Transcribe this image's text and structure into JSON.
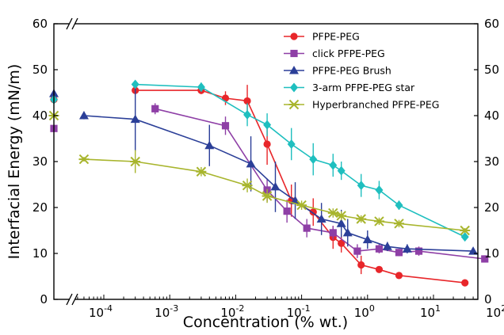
{
  "chart_data": {
    "type": "line",
    "xlabel": "Concentration (% wt.)",
    "ylabel": "Interfacial Energy (mN/m)",
    "xscale": "log",
    "x_tick_labels": [
      "10",
      "10",
      "10",
      "10",
      "10",
      "10",
      "10"
    ],
    "x_tick_exponents": [
      "-4",
      "-3",
      "-2",
      "-1",
      "0",
      "1",
      "2"
    ],
    "y_tick_labels": [
      "0",
      "10",
      "20",
      "30",
      "40",
      "50",
      "60"
    ],
    "y_tick_labels_right": [
      "0",
      "10",
      "20",
      "30",
      "40",
      "50",
      "60"
    ],
    "ylim": [
      0,
      60
    ],
    "axis_break": "left",
    "legend_position": "top-right",
    "series": [
      {
        "name": "PFPE-PEG",
        "color": "#e8262a",
        "marker": "circle",
        "axis_start_y": 43.5,
        "points": [
          {
            "x": 0.0003,
            "y": 45.5,
            "err": 0.8
          },
          {
            "x": 0.003,
            "y": 45.5,
            "err": 0.8
          },
          {
            "x": 0.007,
            "y": 43.8,
            "err": 1.5
          },
          {
            "x": 0.015,
            "y": 43.2,
            "err": 3.5
          },
          {
            "x": 0.03,
            "y": 33.8,
            "err": 4.5
          },
          {
            "x": 0.07,
            "y": 21.5,
            "err": 3.5
          },
          {
            "x": 0.15,
            "y": 19.0,
            "err": 3.0
          },
          {
            "x": 0.3,
            "y": 13.5,
            "err": 2.5
          },
          {
            "x": 0.4,
            "y": 12.2,
            "err": 2.0
          },
          {
            "x": 0.8,
            "y": 7.5,
            "err": 2.0
          },
          {
            "x": 1.5,
            "y": 6.5,
            "err": 0.5
          },
          {
            "x": 3,
            "y": 5.2,
            "err": 0.5
          },
          {
            "x": 30,
            "y": 3.6,
            "err": 0.3
          }
        ]
      },
      {
        "name": "click PFPE-PEG",
        "color": "#8e3fa6",
        "marker": "square",
        "axis_start_y": 37.2,
        "points": [
          {
            "x": 0.0006,
            "y": 41.5,
            "err": 1.2
          },
          {
            "x": 0.007,
            "y": 37.8,
            "err": 2.0
          },
          {
            "x": 0.03,
            "y": 23.8,
            "err": 2.5
          },
          {
            "x": 0.06,
            "y": 19.2,
            "err": 2.5
          },
          {
            "x": 0.12,
            "y": 15.5,
            "err": 2.0
          },
          {
            "x": 0.3,
            "y": 14.5,
            "err": 1.5
          },
          {
            "x": 0.7,
            "y": 10.5,
            "err": 1.5
          },
          {
            "x": 1.5,
            "y": 11.0,
            "err": 1.0
          },
          {
            "x": 3,
            "y": 10.2,
            "err": 0.8
          },
          {
            "x": 6,
            "y": 10.5,
            "err": 1.0
          },
          {
            "x": 60,
            "y": 8.8,
            "err": 0.3
          }
        ]
      },
      {
        "name": "PFPE-PEG Brush",
        "color": "#2b3f98",
        "marker": "triangle",
        "axis_start_y": 44.8,
        "points": [
          {
            "x": 5e-05,
            "y": 40.0,
            "err": 0.8
          },
          {
            "x": 0.0003,
            "y": 39.2,
            "err": 7.0
          },
          {
            "x": 0.004,
            "y": 33.5,
            "err": 4.5
          },
          {
            "x": 0.017,
            "y": 29.5,
            "err": 6.0
          },
          {
            "x": 0.04,
            "y": 24.5,
            "err": 5.5
          },
          {
            "x": 0.08,
            "y": 21.5,
            "err": 4.0
          },
          {
            "x": 0.2,
            "y": 17.5,
            "err": 3.5
          },
          {
            "x": 0.4,
            "y": 16.5,
            "err": 3.0
          },
          {
            "x": 0.5,
            "y": 14.5,
            "err": 3.0
          },
          {
            "x": 1,
            "y": 13.0,
            "err": 2.0
          },
          {
            "x": 2,
            "y": 11.5,
            "err": 1.0
          },
          {
            "x": 4,
            "y": 11.0,
            "err": 1.0
          },
          {
            "x": 40,
            "y": 10.5,
            "err": 0.3
          }
        ]
      },
      {
        "name": "3-arm PFPE-PEG star",
        "color": "#1fbfbf",
        "marker": "diamond",
        "axis_start_y": 43.5,
        "points": [
          {
            "x": 0.0003,
            "y": 46.8,
            "err": 0.5
          },
          {
            "x": 0.003,
            "y": 46.2,
            "err": 1.0
          },
          {
            "x": 0.015,
            "y": 40.2,
            "err": 2.5
          },
          {
            "x": 0.03,
            "y": 38.0,
            "err": 2.5
          },
          {
            "x": 0.07,
            "y": 33.8,
            "err": 3.5
          },
          {
            "x": 0.15,
            "y": 30.5,
            "err": 3.5
          },
          {
            "x": 0.3,
            "y": 29.2,
            "err": 2.5
          },
          {
            "x": 0.4,
            "y": 28.0,
            "err": 2.0
          },
          {
            "x": 0.8,
            "y": 24.8,
            "err": 2.5
          },
          {
            "x": 1.5,
            "y": 23.8,
            "err": 2.0
          },
          {
            "x": 3,
            "y": 20.5,
            "err": 1.0
          },
          {
            "x": 30,
            "y": 13.6,
            "err": 0.5
          }
        ]
      },
      {
        "name": "Hyperbranched PFPE-PEG",
        "color": "#a8b52d",
        "marker": "star",
        "axis_start_y": 40.0,
        "points": [
          {
            "x": 5e-05,
            "y": 30.5,
            "err": 0.5
          },
          {
            "x": 0.0003,
            "y": 30.0,
            "err": 2.5
          },
          {
            "x": 0.003,
            "y": 27.8,
            "err": 1.0
          },
          {
            "x": 0.015,
            "y": 24.8,
            "err": 1.5
          },
          {
            "x": 0.03,
            "y": 22.5,
            "err": 1.5
          },
          {
            "x": 0.1,
            "y": 20.5,
            "err": 1.0
          },
          {
            "x": 0.3,
            "y": 18.8,
            "err": 1.0
          },
          {
            "x": 0.4,
            "y": 18.2,
            "err": 1.0
          },
          {
            "x": 0.8,
            "y": 17.5,
            "err": 0.8
          },
          {
            "x": 1.5,
            "y": 17.0,
            "err": 0.8
          },
          {
            "x": 3,
            "y": 16.5,
            "err": 0.8
          },
          {
            "x": 30,
            "y": 15.0,
            "err": 0.5
          }
        ]
      }
    ]
  }
}
